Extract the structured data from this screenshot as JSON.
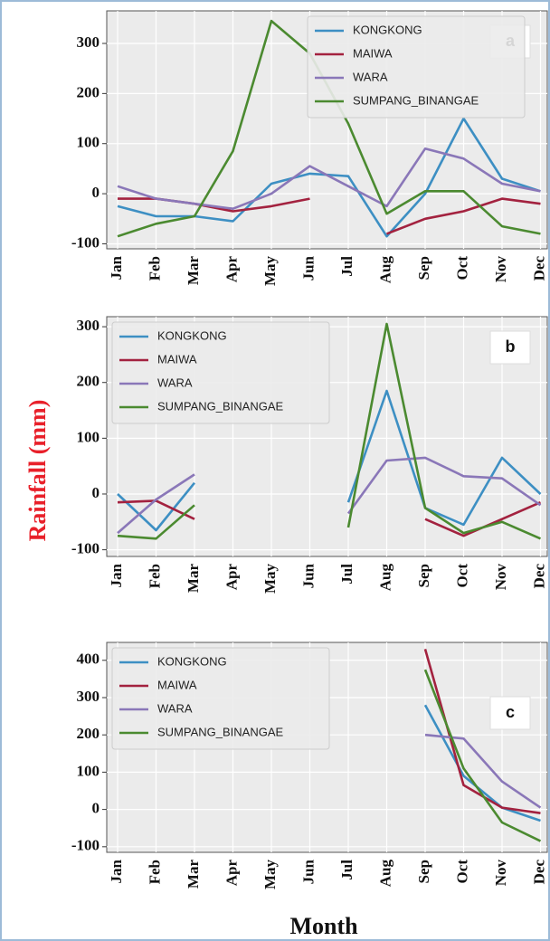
{
  "ylabel": "Rainfall (mm)",
  "xlabel": "Month",
  "chart_data": [
    {
      "type": "line",
      "annotation": "a",
      "categories": [
        "Jan",
        "Feb",
        "Mar",
        "Apr",
        "May",
        "Jun",
        "Jul",
        "Aug",
        "Sep",
        "Oct",
        "Nov",
        "Dec"
      ],
      "series": [
        {
          "name": "KONGKONG",
          "color": "#3d8fc3",
          "values": [
            -25,
            -45,
            -45,
            -55,
            20,
            40,
            35,
            -85,
            0,
            150,
            30,
            5
          ]
        },
        {
          "name": "MAIWA",
          "color": "#a3223f",
          "values": [
            -10,
            -10,
            -20,
            -35,
            -25,
            -10,
            null,
            -80,
            -50,
            -35,
            -10,
            -20
          ]
        },
        {
          "name": "WARA",
          "color": "#8a77b8",
          "values": [
            15,
            -10,
            -20,
            -30,
            0,
            55,
            15,
            -25,
            90,
            70,
            20,
            5
          ]
        },
        {
          "name": "SUMPANG_BINANGAE",
          "color": "#4b8a30",
          "values": [
            -85,
            -60,
            -45,
            85,
            345,
            280,
            140,
            -40,
            5,
            5,
            -65,
            -80
          ]
        }
      ],
      "ylim": [
        -110,
        365
      ],
      "yticks": [
        -100,
        0,
        100,
        200,
        300
      ],
      "grid": true,
      "legend": "upper right"
    },
    {
      "type": "line",
      "annotation": "b",
      "categories": [
        "Jan",
        "Feb",
        "Mar",
        "Apr",
        "May",
        "Jun",
        "Jul",
        "Aug",
        "Sep",
        "Oct",
        "Nov",
        "Dec"
      ],
      "series": [
        {
          "name": "KONGKONG",
          "color": "#3d8fc3",
          "values": [
            0,
            -65,
            20,
            null,
            null,
            null,
            -15,
            185,
            -25,
            -55,
            65,
            0
          ]
        },
        {
          "name": "MAIWA",
          "color": "#a3223f",
          "values": [
            -15,
            -12,
            -45,
            null,
            null,
            null,
            null,
            null,
            -45,
            -75,
            -45,
            -15
          ]
        },
        {
          "name": "WARA",
          "color": "#8a77b8",
          "values": [
            -70,
            -10,
            35,
            null,
            null,
            null,
            -35,
            60,
            65,
            32,
            28,
            -20
          ]
        },
        {
          "name": "SUMPANG_BINANGAE",
          "color": "#4b8a30",
          "values": [
            -75,
            -80,
            -20,
            null,
            null,
            null,
            -60,
            305,
            -25,
            -70,
            -50,
            -80
          ]
        }
      ],
      "ylim": [
        -112,
        318
      ],
      "yticks": [
        -100,
        0,
        100,
        200,
        300
      ],
      "grid": true,
      "legend": "upper left"
    },
    {
      "type": "line",
      "annotation": "c",
      "categories": [
        "Jan",
        "Feb",
        "Mar",
        "Apr",
        "May",
        "Jun",
        "Jul",
        "Aug",
        "Sep",
        "Oct",
        "Nov",
        "Dec"
      ],
      "series": [
        {
          "name": "KONGKONG",
          "color": "#3d8fc3",
          "values": [
            null,
            null,
            null,
            null,
            null,
            null,
            null,
            null,
            280,
            90,
            5,
            -30
          ]
        },
        {
          "name": "MAIWA",
          "color": "#a3223f",
          "values": [
            null,
            null,
            null,
            null,
            null,
            null,
            null,
            null,
            430,
            65,
            5,
            -10
          ]
        },
        {
          "name": "WARA",
          "color": "#8a77b8",
          "values": [
            null,
            null,
            null,
            null,
            null,
            null,
            null,
            null,
            200,
            190,
            75,
            5
          ]
        },
        {
          "name": "SUMPANG_BINANGAE",
          "color": "#4b8a30",
          "values": [
            null,
            null,
            null,
            null,
            null,
            null,
            null,
            null,
            375,
            110,
            -35,
            -85
          ]
        }
      ],
      "ylim": [
        -115,
        448
      ],
      "yticks": [
        -100,
        0,
        100,
        200,
        300,
        400
      ],
      "grid": true,
      "legend": "upper left"
    }
  ]
}
